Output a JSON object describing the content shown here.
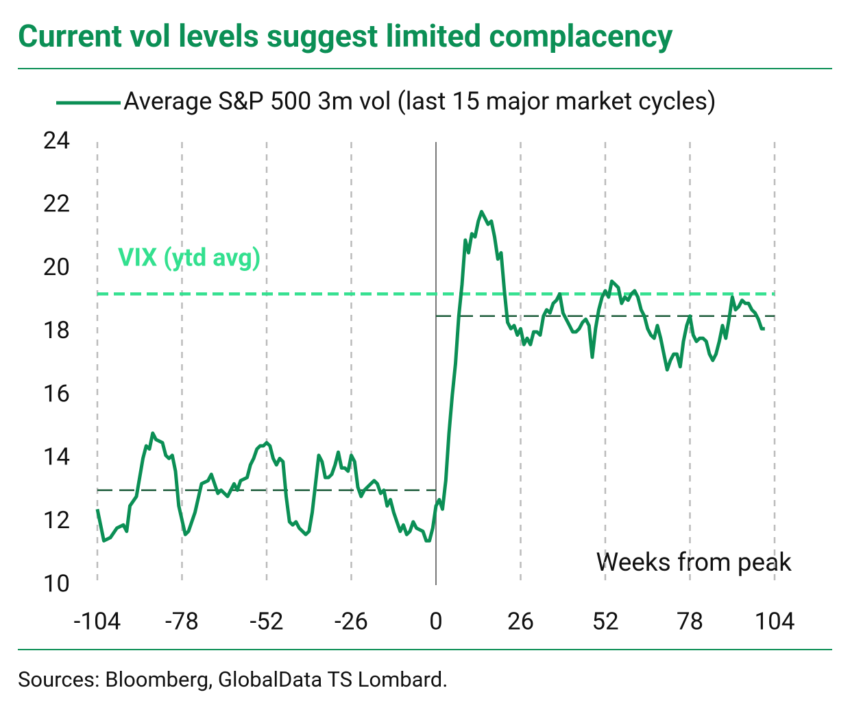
{
  "chart_data": {
    "type": "line",
    "title": "Current vol levels suggest limited complacency",
    "x_label": "Weeks from peak",
    "source": "Sources: Bloomberg, GlobalData TS Lombard.",
    "xlim": [
      -104,
      104
    ],
    "ylim": [
      10,
      24
    ],
    "xticks": [
      -104,
      -78,
      -52,
      -26,
      0,
      26,
      52,
      78,
      104
    ],
    "yticks": [
      10,
      12,
      14,
      16,
      18,
      20,
      22,
      24
    ],
    "grid": true,
    "x": [
      -104,
      -102,
      -100,
      -98,
      -96,
      -95,
      -94,
      -92,
      -90,
      -89,
      -88,
      -87,
      -86,
      -84,
      -83,
      -82,
      -81,
      -80,
      -79,
      -77,
      -76,
      -74,
      -72,
      -70,
      -69,
      -68,
      -67,
      -66,
      -64,
      -62,
      -61,
      -60,
      -58,
      -57,
      -56,
      -55,
      -54,
      -53,
      -52,
      -51,
      -50,
      -49,
      -48,
      -47,
      -46,
      -45,
      -44,
      -43,
      -42,
      -40,
      -39,
      -38,
      -37,
      -36,
      -35,
      -34,
      -33,
      -32,
      -31,
      -30,
      -29,
      -28,
      -27,
      -26,
      -25,
      -24,
      -23,
      -22,
      -20,
      -19,
      -18,
      -17,
      -16,
      -15,
      -14,
      -13,
      -12,
      -11,
      -10,
      -9,
      -8,
      -7,
      -6,
      -4,
      -3,
      -2,
      -1,
      0,
      1,
      2,
      3,
      4,
      5,
      6,
      7,
      8,
      9,
      10,
      11,
      12,
      13,
      14,
      15,
      16,
      17,
      18,
      19,
      20,
      21,
      22,
      23,
      24,
      25,
      26,
      27,
      28,
      29,
      30,
      31,
      32,
      33,
      34,
      35,
      36,
      37,
      38,
      39,
      40,
      41,
      42,
      43,
      44,
      45,
      46,
      47,
      48,
      49,
      50,
      51,
      52,
      53,
      54,
      55,
      56,
      57,
      58,
      59,
      60,
      61,
      62,
      63,
      64,
      65,
      66,
      67,
      68,
      69,
      70,
      71,
      72,
      73,
      74,
      75,
      76,
      77,
      78,
      79,
      80,
      81,
      82,
      83,
      84,
      85,
      86,
      87,
      88,
      89,
      90,
      91,
      92,
      93,
      94,
      95,
      96,
      97,
      98,
      99,
      100,
      101
    ],
    "series": [
      {
        "name": "Average S&P 500 3m vol (last 15 major market cycles)",
        "color": "#0b8f55",
        "values": [
          12.4,
          11.4,
          11.5,
          11.8,
          11.9,
          11.7,
          12.5,
          12.8,
          14.0,
          14.4,
          14.3,
          14.8,
          14.6,
          14.5,
          14.1,
          14.0,
          14.1,
          13.6,
          12.5,
          11.6,
          11.7,
          12.3,
          13.2,
          13.3,
          13.5,
          13.2,
          12.9,
          13.0,
          12.8,
          13.2,
          13.0,
          13.3,
          13.4,
          13.8,
          14.0,
          14.3,
          14.4,
          14.4,
          14.5,
          14.4,
          14.0,
          13.8,
          14.0,
          13.9,
          12.8,
          12.0,
          11.9,
          12.0,
          11.8,
          11.6,
          11.7,
          12.3,
          13.2,
          14.1,
          13.9,
          13.4,
          13.4,
          13.5,
          13.8,
          14.2,
          13.7,
          13.7,
          13.6,
          14.1,
          13.9,
          13.1,
          12.8,
          13.0,
          13.2,
          13.3,
          13.2,
          12.9,
          13.0,
          12.5,
          12.7,
          12.3,
          12.0,
          11.7,
          11.9,
          11.6,
          11.7,
          12.0,
          11.8,
          11.7,
          11.4,
          11.4,
          11.8,
          12.5,
          12.7,
          12.4,
          13.3,
          14.8,
          16.0,
          17.0,
          18.5,
          19.5,
          20.9,
          20.5,
          21.1,
          21.0,
          21.5,
          21.8,
          21.6,
          21.4,
          21.5,
          21.0,
          20.3,
          20.5,
          19.3,
          18.3,
          18.1,
          18.2,
          17.9,
          18.1,
          17.6,
          17.8,
          17.6,
          18.0,
          18.0,
          17.9,
          18.5,
          18.7,
          18.6,
          18.9,
          19.0,
          19.2,
          18.6,
          18.4,
          18.2,
          18.0,
          18.0,
          18.1,
          18.3,
          18.4,
          18.2,
          17.2,
          18.1,
          18.7,
          19.1,
          19.3,
          19.1,
          19.6,
          19.5,
          19.4,
          18.9,
          19.1,
          19.0,
          19.2,
          19.3,
          19.1,
          18.7,
          18.5,
          18.1,
          17.9,
          17.8,
          18.2,
          17.8,
          17.3,
          16.8,
          17.1,
          17.3,
          17.3,
          16.9,
          17.7,
          18.2,
          18.5,
          17.9,
          17.7,
          17.8,
          17.8,
          17.7,
          17.3,
          17.1,
          17.3,
          17.7,
          18.2,
          17.8,
          18.4,
          19.1,
          18.7,
          18.8,
          19.0,
          18.9,
          18.9,
          18.7,
          18.6,
          18.4,
          18.1,
          18.1
        ]
      }
    ],
    "reference_lines": [
      {
        "label": "VIX (ytd avg)",
        "value": 19.2,
        "color": "#33e08f",
        "x_range": [
          -104,
          104
        ]
      },
      {
        "value": 13.0,
        "color": "#1d5c3b",
        "x_range": [
          -104,
          0
        ]
      },
      {
        "value": 18.5,
        "color": "#1d5c3b",
        "x_range": [
          0,
          104
        ]
      }
    ]
  }
}
